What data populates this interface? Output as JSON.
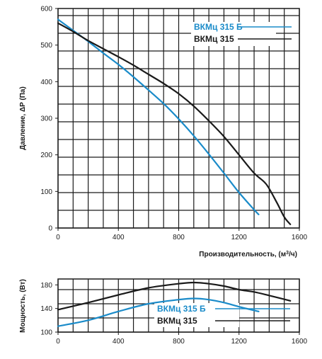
{
  "chart_data": [
    {
      "type": "line",
      "ylabel": "Давление, ΔP (Па)",
      "xlabel": "Производительность, (м³/ч)",
      "xlabel_parts": [
        "Производительность, (м",
        "3",
        "/ч)"
      ],
      "xlim": [
        0,
        1600
      ],
      "ylim": [
        0,
        600
      ],
      "x_ticks": [
        0,
        400,
        800,
        1200,
        1600
      ],
      "y_ticks": [
        0,
        100,
        200,
        300,
        400,
        500,
        600
      ],
      "grid": true,
      "legend_position": "top-right",
      "series": [
        {
          "name": "ВКМц 315 Б",
          "color": "#1a8bc9",
          "points": [
            [
              0,
              570
            ],
            [
              100,
              540
            ],
            [
              200,
              510
            ],
            [
              300,
              478
            ],
            [
              400,
              447
            ],
            [
              500,
              413
            ],
            [
              600,
              377
            ],
            [
              700,
              340
            ],
            [
              800,
              298
            ],
            [
              900,
              252
            ],
            [
              1000,
              202
            ],
            [
              1100,
              150
            ],
            [
              1200,
              97
            ],
            [
              1300,
              50
            ],
            [
              1330,
              37
            ]
          ]
        },
        {
          "name": "ВКМц 315",
          "color": "#1a1a1a",
          "points": [
            [
              0,
              560
            ],
            [
              100,
              537
            ],
            [
              200,
              512
            ],
            [
              300,
              490
            ],
            [
              400,
              468
            ],
            [
              500,
              445
            ],
            [
              600,
              420
            ],
            [
              700,
              395
            ],
            [
              800,
              367
            ],
            [
              900,
              333
            ],
            [
              1000,
              293
            ],
            [
              1100,
              250
            ],
            [
              1200,
              200
            ],
            [
              1300,
              150
            ],
            [
              1380,
              120
            ],
            [
              1450,
              70
            ],
            [
              1500,
              30
            ],
            [
              1540,
              10
            ]
          ]
        }
      ]
    },
    {
      "type": "line",
      "ylabel": "Мощность, (Вт)",
      "xlim": [
        0,
        1600
      ],
      "ylim": [
        100,
        190
      ],
      "x_ticks": [
        0,
        400,
        800,
        1200,
        1600
      ],
      "y_ticks": [
        100,
        140,
        180
      ],
      "grid": true,
      "legend_position": "bottom-right",
      "series": [
        {
          "name": "ВКМц 315 Б",
          "color": "#1a8bc9",
          "points": [
            [
              0,
              110
            ],
            [
              200,
              120
            ],
            [
              400,
              135
            ],
            [
              600,
              148
            ],
            [
              800,
              155
            ],
            [
              900,
              157
            ],
            [
              1000,
              155
            ],
            [
              1100,
              150
            ],
            [
              1200,
              143
            ],
            [
              1330,
              135
            ]
          ]
        },
        {
          "name": "ВКМц 315",
          "color": "#1a1a1a",
          "points": [
            [
              0,
              138
            ],
            [
              200,
              150
            ],
            [
              400,
              163
            ],
            [
              600,
              175
            ],
            [
              800,
              182
            ],
            [
              900,
              184
            ],
            [
              1000,
              182
            ],
            [
              1100,
              178
            ],
            [
              1200,
              172
            ],
            [
              1300,
              168
            ],
            [
              1400,
              162
            ],
            [
              1540,
              153
            ]
          ]
        }
      ]
    }
  ]
}
